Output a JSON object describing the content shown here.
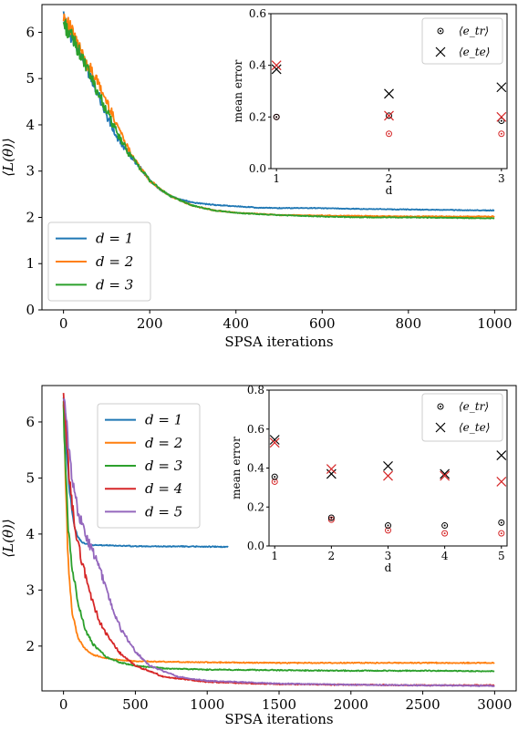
{
  "colors": {
    "blue": "#1f77b4",
    "orange": "#ff7f0e",
    "green": "#2ca02c",
    "red": "#d62728",
    "purple": "#9467bd",
    "inset_train_marker": "#000000",
    "inset_test_marker": "#d62728"
  },
  "chart_data": [
    {
      "type": "line",
      "title": "",
      "xlabel": "SPSA iterations",
      "ylabel": "⟨L(θ)⟩",
      "xlim": [
        -50,
        1050
      ],
      "ylim": [
        0,
        6.6
      ],
      "xticks": [
        0,
        200,
        400,
        600,
        800,
        1000
      ],
      "xtick_labels": [
        "0",
        "200",
        "400",
        "600",
        "800",
        "1000"
      ],
      "yticks": [
        0,
        1,
        2,
        3,
        4,
        5,
        6
      ],
      "ytick_labels": [
        "0",
        "1",
        "2",
        "3",
        "4",
        "5",
        "6"
      ],
      "legend_placement": "lower-left",
      "series": [
        {
          "name": "d = 1",
          "color": "#1f77b4",
          "x": [
            0,
            25,
            50,
            75,
            100,
            125,
            150,
            175,
            200,
            225,
            250,
            275,
            300,
            350,
            400,
            450,
            500,
            600,
            700,
            800,
            900,
            1000
          ],
          "y": [
            6.3,
            5.8,
            5.3,
            4.8,
            4.2,
            3.7,
            3.4,
            3.1,
            2.8,
            2.6,
            2.45,
            2.38,
            2.32,
            2.27,
            2.24,
            2.21,
            2.2,
            2.2,
            2.18,
            2.17,
            2.16,
            2.15
          ]
        },
        {
          "name": "d = 2",
          "color": "#ff7f0e",
          "x": [
            0,
            25,
            50,
            75,
            100,
            125,
            150,
            175,
            200,
            225,
            250,
            275,
            300,
            350,
            400,
            450,
            500,
            600,
            700,
            800,
            900,
            1000
          ],
          "y": [
            6.4,
            5.9,
            5.4,
            5.0,
            4.5,
            4.0,
            3.5,
            3.1,
            2.8,
            2.6,
            2.45,
            2.35,
            2.25,
            2.15,
            2.1,
            2.08,
            2.05,
            2.04,
            2.03,
            2.02,
            2.02,
            2.02
          ]
        },
        {
          "name": "d = 3",
          "color": "#2ca02c",
          "x": [
            0,
            25,
            50,
            75,
            100,
            125,
            150,
            175,
            200,
            225,
            250,
            275,
            300,
            350,
            400,
            450,
            500,
            600,
            700,
            800,
            900,
            1000
          ],
          "y": [
            6.2,
            5.8,
            5.3,
            4.8,
            4.3,
            3.8,
            3.4,
            3.1,
            2.8,
            2.6,
            2.45,
            2.35,
            2.25,
            2.15,
            2.1,
            2.07,
            2.05,
            2.02,
            2.0,
            2.0,
            1.99,
            1.98
          ]
        }
      ],
      "inset": {
        "type": "scatter",
        "xlabel": "d",
        "ylabel": "mean error",
        "xlim": [
          0.95,
          3.05
        ],
        "ylim": [
          0.0,
          0.6
        ],
        "xticks": [
          1,
          2,
          3
        ],
        "xtick_labels": [
          "1",
          "2",
          "3"
        ],
        "yticks": [
          0.0,
          0.2,
          0.4,
          0.6
        ],
        "ytick_labels": [
          "0.0",
          "0.2",
          "0.4",
          "0.6"
        ],
        "legend_placement": "top-right",
        "legend": [
          "⟨e_tr⟩",
          "⟨e_te⟩"
        ],
        "x": [
          1,
          2,
          3
        ],
        "train_black": [
          0.2,
          0.205,
          0.185
        ],
        "train_red": [
          0.2,
          0.135,
          0.135
        ],
        "test_black": [
          0.385,
          0.29,
          0.315
        ],
        "test_red": [
          0.4,
          0.205,
          0.2
        ]
      }
    },
    {
      "type": "line",
      "title": "",
      "xlabel": "SPSA iterations",
      "ylabel": "⟨L(θ)⟩",
      "xlim": [
        -150,
        3150
      ],
      "ylim": [
        1.2,
        6.65
      ],
      "xticks": [
        0,
        500,
        1000,
        1500,
        2000,
        2500,
        3000
      ],
      "xtick_labels": [
        "0",
        "500",
        "1000",
        "1500",
        "2000",
        "2500",
        "3000"
      ],
      "yticks": [
        2,
        3,
        4,
        5,
        6
      ],
      "ytick_labels": [
        "2",
        "3",
        "4",
        "5",
        "6"
      ],
      "legend_placement": "upper-left",
      "series": [
        {
          "name": "d = 1",
          "color": "#1f77b4",
          "x": [
            0,
            20,
            40,
            60,
            80,
            100,
            130,
            160,
            200,
            300,
            500,
            800,
            1150
          ],
          "y": [
            6.5,
            5.5,
            4.8,
            4.4,
            4.1,
            3.95,
            3.85,
            3.82,
            3.8,
            3.8,
            3.78,
            3.78,
            3.77
          ]
        },
        {
          "name": "d = 2",
          "color": "#ff7f0e",
          "x": [
            0,
            30,
            60,
            100,
            150,
            200,
            300,
            400,
            500,
            700,
            1000,
            1500,
            2000,
            2500,
            3000
          ],
          "y": [
            6.3,
            3.6,
            2.6,
            2.15,
            1.95,
            1.85,
            1.78,
            1.75,
            1.73,
            1.72,
            1.71,
            1.7,
            1.7,
            1.7,
            1.7
          ]
        },
        {
          "name": "d = 3",
          "color": "#2ca02c",
          "x": [
            0,
            30,
            60,
            100,
            150,
            200,
            300,
            400,
            500,
            700,
            1000,
            1500,
            2000,
            2500,
            3000
          ],
          "y": [
            6.2,
            4.2,
            3.4,
            2.8,
            2.3,
            2.05,
            1.8,
            1.7,
            1.65,
            1.6,
            1.58,
            1.57,
            1.56,
            1.56,
            1.55
          ]
        },
        {
          "name": "d = 4",
          "color": "#d62728",
          "x": [
            0,
            40,
            80,
            120,
            160,
            200,
            250,
            300,
            400,
            500,
            700,
            1000,
            1500,
            2000,
            2500,
            3000
          ],
          "y": [
            6.4,
            5.0,
            4.1,
            3.6,
            3.2,
            2.8,
            2.45,
            2.2,
            1.85,
            1.65,
            1.45,
            1.36,
            1.32,
            1.31,
            1.3,
            1.3
          ]
        },
        {
          "name": "d = 5",
          "color": "#9467bd",
          "x": [
            0,
            50,
            100,
            150,
            200,
            250,
            300,
            350,
            400,
            500,
            600,
            800,
            1000,
            1500,
            2000,
            2500,
            3000
          ],
          "y": [
            6.5,
            5.2,
            4.4,
            4.0,
            3.7,
            3.4,
            3.0,
            2.6,
            2.3,
            1.9,
            1.65,
            1.45,
            1.38,
            1.33,
            1.31,
            1.3,
            1.29
          ]
        }
      ],
      "inset": {
        "type": "scatter",
        "xlabel": "d",
        "ylabel": "mean error",
        "xlim": [
          0.9,
          5.1
        ],
        "ylim": [
          0.0,
          0.8
        ],
        "xticks": [
          1,
          2,
          3,
          4,
          5
        ],
        "xtick_labels": [
          "1",
          "2",
          "3",
          "4",
          "5"
        ],
        "yticks": [
          0.0,
          0.2,
          0.4,
          0.6,
          0.8
        ],
        "ytick_labels": [
          "0.0",
          "0.2",
          "0.4",
          "0.6",
          "0.8"
        ],
        "legend_placement": "top-right",
        "legend": [
          "⟨e_tr⟩",
          "⟨e_te⟩"
        ],
        "x": [
          1,
          2,
          3,
          4,
          5
        ],
        "train_black": [
          0.355,
          0.145,
          0.105,
          0.105,
          0.12
        ],
        "train_red": [
          0.33,
          0.135,
          0.08,
          0.065,
          0.065
        ],
        "test_black": [
          0.545,
          0.37,
          0.41,
          0.37,
          0.465
        ],
        "test_red": [
          0.53,
          0.395,
          0.36,
          0.36,
          0.33
        ]
      }
    }
  ]
}
